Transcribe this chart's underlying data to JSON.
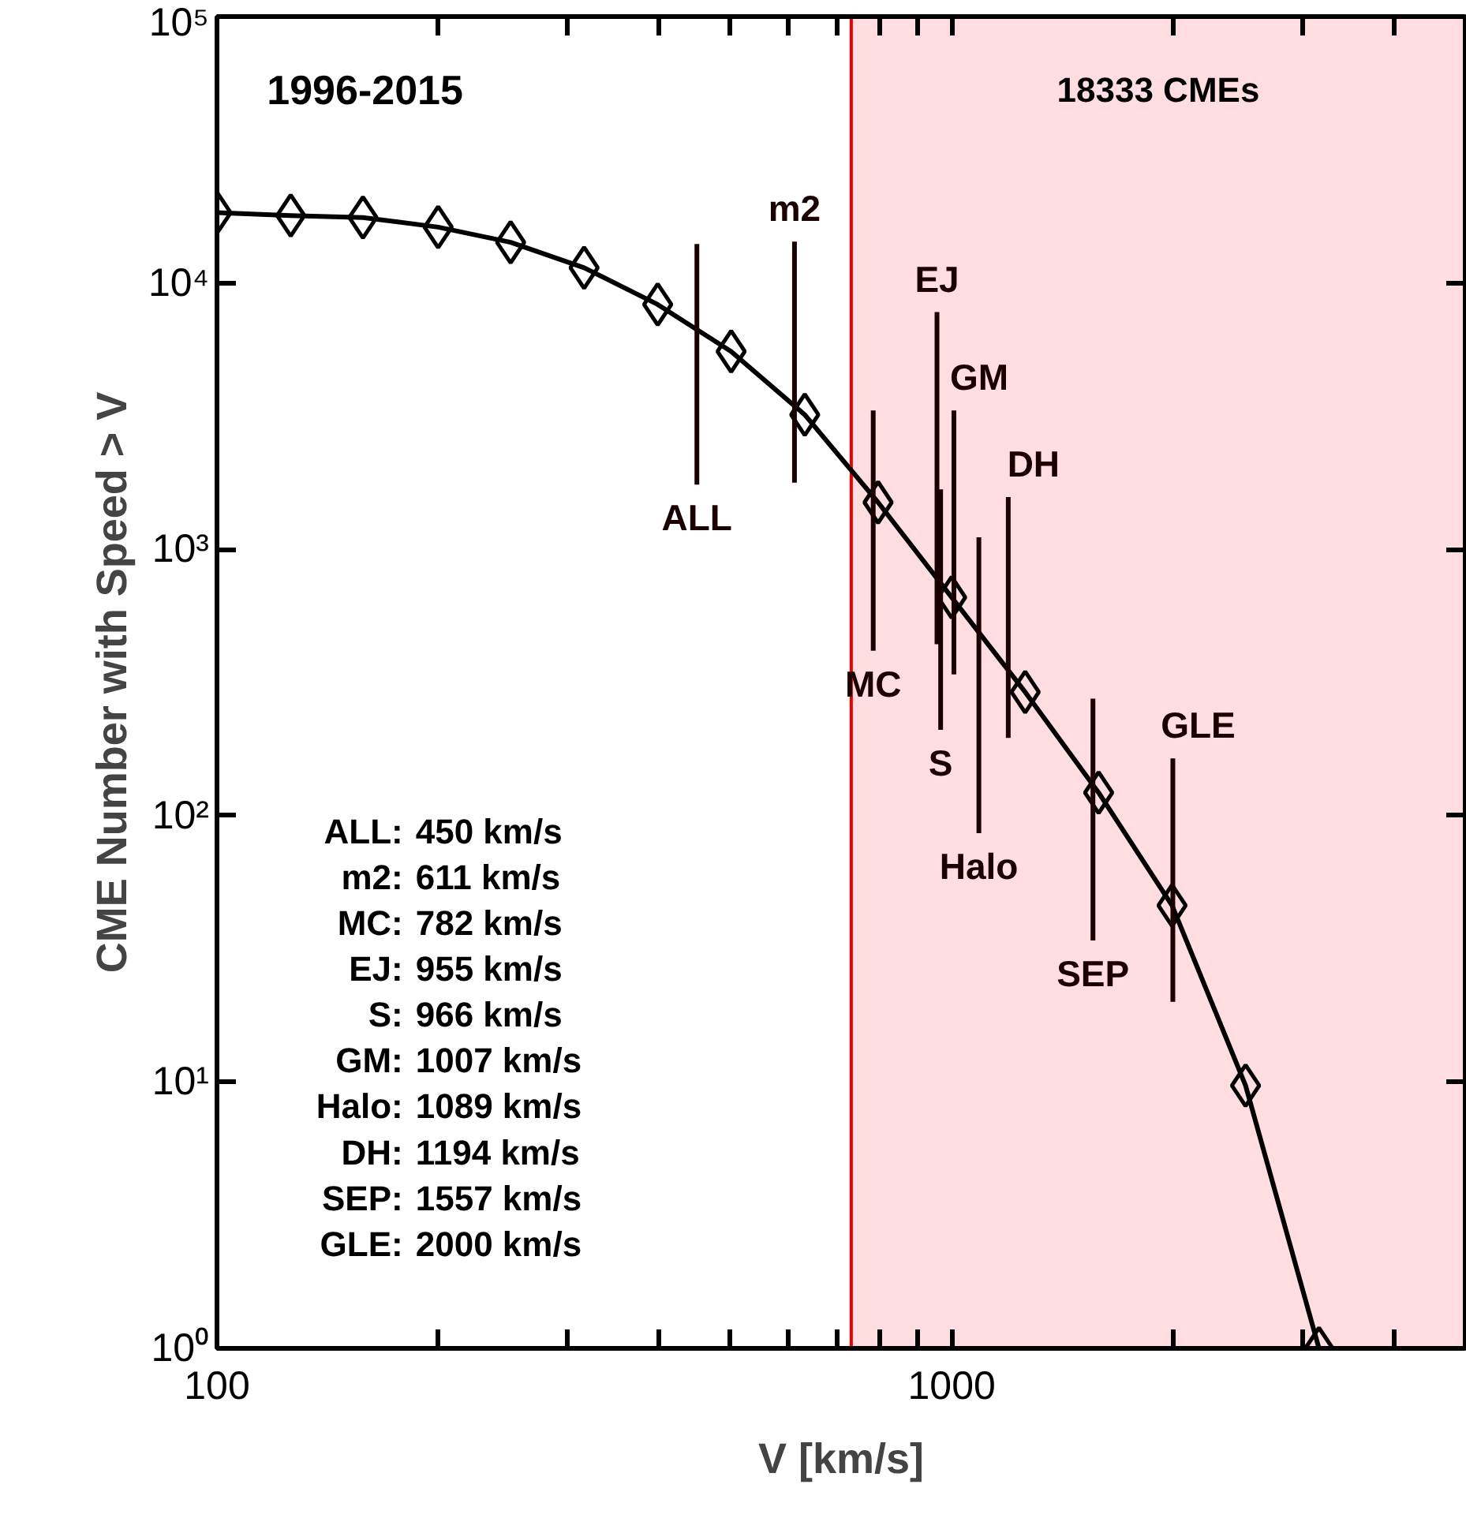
{
  "chart_data": {
    "type": "line",
    "xlabel": "V [km/s]",
    "ylabel": "CME Number with Speed > V",
    "log": "xy",
    "grid": false,
    "marker": "diamond",
    "line_style": "solid",
    "xlim": [
      100,
      5000
    ],
    "ylim": [
      1,
      100000
    ],
    "xticks": [
      100,
      {
        "value": 200,
        "label": null
      },
      {
        "value": 300,
        "label": null
      },
      {
        "value": 400,
        "label": null
      },
      {
        "value": 500,
        "label": null
      },
      {
        "value": 600,
        "label": null
      },
      {
        "value": 700,
        "label": null
      },
      {
        "value": 800,
        "label": null
      },
      {
        "value": 900,
        "label": null
      },
      1000,
      {
        "value": 2000,
        "label": null
      },
      {
        "value": 3000,
        "label": null
      },
      {
        "value": 4000,
        "label": null
      },
      {
        "value": 5000,
        "label": null
      }
    ],
    "yticks": [
      {
        "value": 1,
        "label": "10⁰"
      },
      {
        "value": 10,
        "label": "10¹"
      },
      {
        "value": 100,
        "label": "10²"
      },
      {
        "value": 1000,
        "label": "10³"
      },
      {
        "value": 10000,
        "label": "10⁴"
      },
      {
        "value": 100000,
        "label": "10⁵"
      }
    ],
    "bands": [
      {
        "axis": "x",
        "from": 730,
        "to": 5000,
        "label": "18333 CMEs",
        "color": "#ffdde0"
      }
    ],
    "series": [
      {
        "color": "#000000",
        "x": [
          100,
          126,
          158,
          200,
          251,
          316,
          398,
          501,
          631,
          794,
          1000,
          1259,
          1585,
          1995,
          2512,
          3162
        ],
        "values": [
          18350,
          17900,
          17600,
          16200,
          14200,
          11400,
          8300,
          5530,
          3200,
          1500,
          660,
          291,
          122,
          46,
          9.7,
          1
        ]
      },
      {
        "name": "ALL",
        "type": "line",
        "marker": "none",
        "color": "#1a0000",
        "x": [
          450,
          450
        ],
        "values": [
          1750,
          14000
        ]
      },
      {
        "name": "m2",
        "type": "line",
        "marker": "none",
        "color": "#1a0000",
        "x": [
          611,
          611
        ],
        "values": [
          1780,
          14300
        ]
      },
      {
        "name": "MC",
        "type": "line",
        "marker": "none",
        "color": "#1a0000",
        "x": [
          782,
          782
        ],
        "values": [
          416,
          3320
        ]
      },
      {
        "name": "EJ",
        "type": "line",
        "marker": "none",
        "color": "#1a0000",
        "x": [
          955,
          955
        ],
        "values": [
          440,
          7770
        ]
      },
      {
        "name": "S",
        "type": "line",
        "marker": "none",
        "color": "#1a0000",
        "x": [
          966,
          966
        ],
        "values": [
          210,
          1680
        ]
      },
      {
        "name": "GM",
        "type": "line",
        "marker": "none",
        "color": "#1a0000",
        "x": [
          1007,
          1007
        ],
        "values": [
          339,
          3320
        ]
      },
      {
        "name": "Halo",
        "type": "line",
        "marker": "none",
        "color": "#1a0000",
        "x": [
          1089,
          1089
        ],
        "values": [
          86,
          1110
        ]
      },
      {
        "name": "DH",
        "type": "line",
        "marker": "none",
        "color": "#1a0000",
        "x": [
          1194,
          1194
        ],
        "values": [
          196,
          1570
        ]
      },
      {
        "name": "SEP",
        "type": "line",
        "marker": "none",
        "color": "#1a0000",
        "x": [
          1557,
          1557
        ],
        "values": [
          34,
          275
        ]
      },
      {
        "name": "GLE",
        "type": "line",
        "marker": "none",
        "color": "#1a0000",
        "x": [
          2000,
          2000
        ],
        "values": [
          20,
          164
        ]
      }
    ],
    "annotations": [
      "1996-2015",
      "ALL: 450 km/s",
      "m2: 611 km/s",
      "MC: 782 km/s",
      "EJ: 955 km/s",
      "S: 966 km/s",
      "GM: 1007 km/s",
      "Halo: 1089 km/s",
      "DH: 1194 km/s",
      "SEP: 1557 km/s",
      "GLE: 2000 km/s"
    ]
  }
}
